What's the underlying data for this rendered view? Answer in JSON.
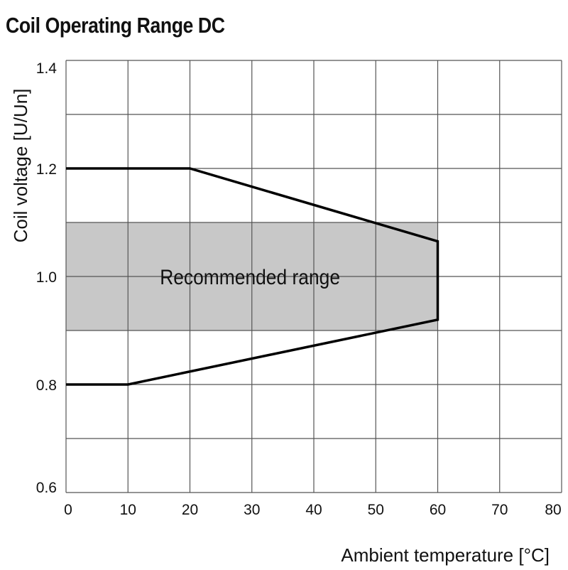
{
  "chart_data": {
    "type": "area",
    "title": "Coil Operating Range DC",
    "xlabel": "Ambient temperature [°C]",
    "ylabel": "Coil voltage [U/Un]",
    "xlim": [
      0,
      80
    ],
    "ylim": [
      0.6,
      1.4
    ],
    "x_ticks": [
      0,
      10,
      20,
      30,
      40,
      50,
      60,
      70,
      80
    ],
    "y_ticks": [
      0.6,
      0.8,
      1.0,
      1.2,
      1.4
    ],
    "y_tick_labels": [
      "0.6",
      "0.8",
      "1.0",
      "1.2",
      "1.4"
    ],
    "grid": true,
    "legend": "none",
    "band": {
      "label": "Recommended range",
      "y_range": [
        0.9,
        1.1
      ],
      "x_range": [
        0,
        60
      ],
      "color": "#c8c8c8"
    },
    "series": [
      {
        "x": [
          0,
          20,
          60,
          60,
          10,
          0
        ],
        "y": [
          1.2,
          1.2,
          1.065,
          0.92,
          0.8,
          0.8
        ],
        "color": "#000000"
      }
    ]
  }
}
